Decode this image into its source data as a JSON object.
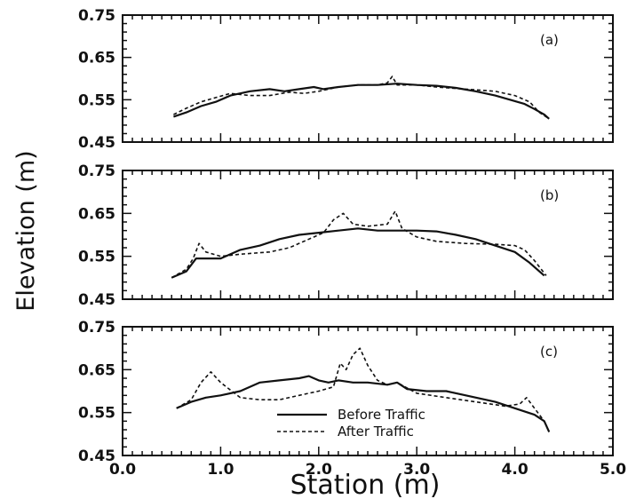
{
  "chart_data": [
    {
      "type": "line",
      "panel_label": "(a)",
      "xlim": [
        0.0,
        5.0
      ],
      "ylim": [
        0.45,
        0.75
      ],
      "yticks": [
        "0.45",
        "0.55",
        "0.65",
        "0.75"
      ],
      "series": [
        {
          "name": "Before Traffic",
          "style": "solid",
          "x": [
            0.52,
            0.65,
            0.8,
            0.95,
            1.1,
            1.3,
            1.5,
            1.65,
            1.8,
            1.95,
            2.05,
            2.2,
            2.4,
            2.6,
            2.8,
            3.0,
            3.2,
            3.4,
            3.6,
            3.8,
            3.95,
            4.1,
            4.2,
            4.3,
            4.35
          ],
          "y": [
            0.51,
            0.52,
            0.535,
            0.545,
            0.56,
            0.57,
            0.575,
            0.57,
            0.575,
            0.58,
            0.575,
            0.58,
            0.585,
            0.585,
            0.588,
            0.585,
            0.583,
            0.578,
            0.57,
            0.56,
            0.55,
            0.54,
            0.528,
            0.515,
            0.505
          ]
        },
        {
          "name": "After Traffic",
          "style": "dashed",
          "x": [
            0.52,
            0.65,
            0.8,
            0.95,
            1.1,
            1.3,
            1.5,
            1.7,
            1.85,
            2.0,
            2.2,
            2.4,
            2.6,
            2.7,
            2.75,
            2.8,
            3.0,
            3.2,
            3.5,
            3.8,
            4.0,
            4.15,
            4.25,
            4.35
          ],
          "y": [
            0.515,
            0.53,
            0.545,
            0.555,
            0.565,
            0.56,
            0.56,
            0.568,
            0.565,
            0.57,
            0.58,
            0.585,
            0.585,
            0.59,
            0.605,
            0.585,
            0.585,
            0.58,
            0.575,
            0.57,
            0.56,
            0.545,
            0.52,
            0.505
          ]
        }
      ]
    },
    {
      "type": "line",
      "panel_label": "(b)",
      "xlim": [
        0.0,
        5.0
      ],
      "ylim": [
        0.45,
        0.75
      ],
      "yticks": [
        "0.45",
        "0.55",
        "0.65",
        "0.75"
      ],
      "series": [
        {
          "name": "Before Traffic",
          "style": "solid",
          "x": [
            0.5,
            0.65,
            0.75,
            0.9,
            1.0,
            1.2,
            1.4,
            1.6,
            1.8,
            2.0,
            2.2,
            2.4,
            2.6,
            2.8,
            3.0,
            3.2,
            3.4,
            3.6,
            3.8,
            4.0,
            4.15,
            4.3
          ],
          "y": [
            0.5,
            0.515,
            0.545,
            0.545,
            0.545,
            0.565,
            0.575,
            0.59,
            0.6,
            0.605,
            0.61,
            0.615,
            0.61,
            0.61,
            0.61,
            0.608,
            0.6,
            0.59,
            0.575,
            0.56,
            0.535,
            0.505
          ]
        },
        {
          "name": "After Traffic",
          "style": "dashed",
          "x": [
            0.5,
            0.65,
            0.72,
            0.78,
            0.85,
            1.0,
            1.2,
            1.5,
            1.7,
            1.9,
            2.05,
            2.15,
            2.25,
            2.35,
            2.5,
            2.7,
            2.78,
            2.85,
            3.0,
            3.2,
            3.5,
            3.8,
            4.0,
            4.1,
            4.2,
            4.32
          ],
          "y": [
            0.5,
            0.52,
            0.545,
            0.58,
            0.56,
            0.55,
            0.555,
            0.56,
            0.57,
            0.59,
            0.605,
            0.635,
            0.65,
            0.625,
            0.62,
            0.625,
            0.655,
            0.615,
            0.595,
            0.585,
            0.58,
            0.578,
            0.575,
            0.565,
            0.54,
            0.505
          ]
        }
      ]
    },
    {
      "type": "line",
      "panel_label": "(c)",
      "xlim": [
        0.0,
        5.0
      ],
      "ylim": [
        0.45,
        0.75
      ],
      "yticks": [
        "0.45",
        "0.55",
        "0.65",
        "0.75"
      ],
      "xticks": [
        "0.0",
        "1.0",
        "2.0",
        "3.0",
        "4.0",
        "5.0"
      ],
      "series": [
        {
          "name": "Before Traffic",
          "style": "solid",
          "x": [
            0.55,
            0.7,
            0.85,
            1.0,
            1.2,
            1.4,
            1.6,
            1.8,
            1.9,
            2.0,
            2.1,
            2.2,
            2.35,
            2.5,
            2.7,
            2.8,
            2.9,
            3.1,
            3.3,
            3.5,
            3.8,
            4.0,
            4.2,
            4.3,
            4.35
          ],
          "y": [
            0.56,
            0.575,
            0.585,
            0.59,
            0.6,
            0.62,
            0.625,
            0.63,
            0.635,
            0.625,
            0.62,
            0.625,
            0.62,
            0.62,
            0.615,
            0.62,
            0.605,
            0.6,
            0.6,
            0.59,
            0.575,
            0.56,
            0.545,
            0.53,
            0.505
          ]
        },
        {
          "name": "After Traffic",
          "style": "dashed",
          "x": [
            0.55,
            0.7,
            0.8,
            0.9,
            1.0,
            1.2,
            1.4,
            1.6,
            1.8,
            2.0,
            2.15,
            2.22,
            2.28,
            2.35,
            2.42,
            2.5,
            2.6,
            2.7,
            2.8,
            3.0,
            3.3,
            3.6,
            3.9,
            4.05,
            4.12,
            4.2,
            4.3,
            4.35
          ],
          "y": [
            0.56,
            0.58,
            0.62,
            0.645,
            0.62,
            0.585,
            0.58,
            0.58,
            0.59,
            0.6,
            0.61,
            0.665,
            0.65,
            0.685,
            0.7,
            0.66,
            0.625,
            0.615,
            0.62,
            0.595,
            0.585,
            0.575,
            0.565,
            0.57,
            0.585,
            0.56,
            0.53,
            0.505
          ]
        }
      ]
    }
  ],
  "axes": {
    "ylabel": "Elevation  (m)",
    "xlabel": "Station  (m)"
  },
  "legend": [
    {
      "label": "Before Traffic",
      "style": "solid"
    },
    {
      "label": "After Traffic",
      "style": "dashed"
    }
  ]
}
